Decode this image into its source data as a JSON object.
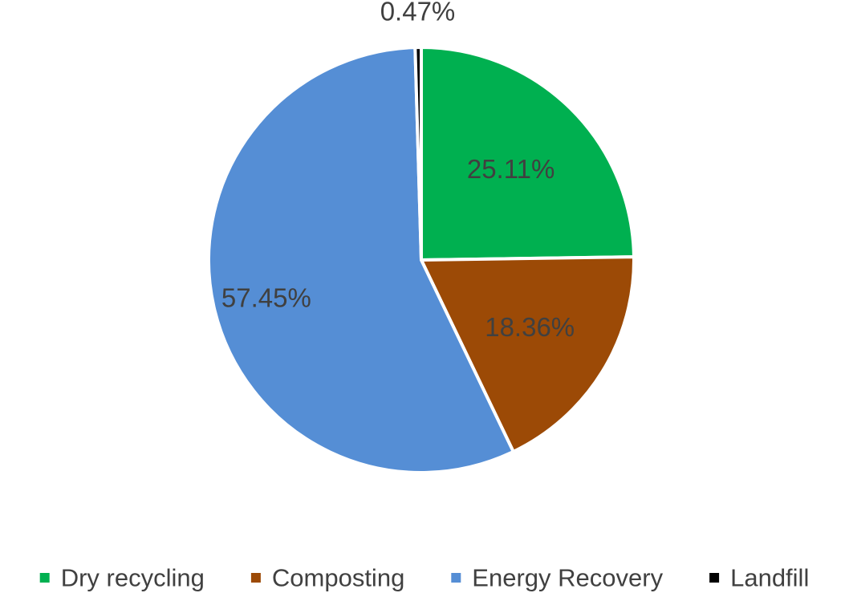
{
  "chart_data": {
    "type": "pie",
    "title": "",
    "categories": [
      "Dry recycling",
      "Composting",
      "Energy Recovery",
      "Landfill"
    ],
    "values": [
      25.11,
      18.36,
      57.45,
      0.47
    ],
    "data_labels": [
      "25.11%",
      "18.36%",
      "57.45%",
      "0.47%"
    ],
    "colors": [
      "#00B050",
      "#9C4A06",
      "#558ED5",
      "#000000"
    ],
    "slice_edge_color": "#ffffff",
    "legend": {
      "position": "bottom",
      "entries": [
        "Dry recycling",
        "Composting",
        "Energy Recovery",
        "Landfill"
      ]
    }
  }
}
